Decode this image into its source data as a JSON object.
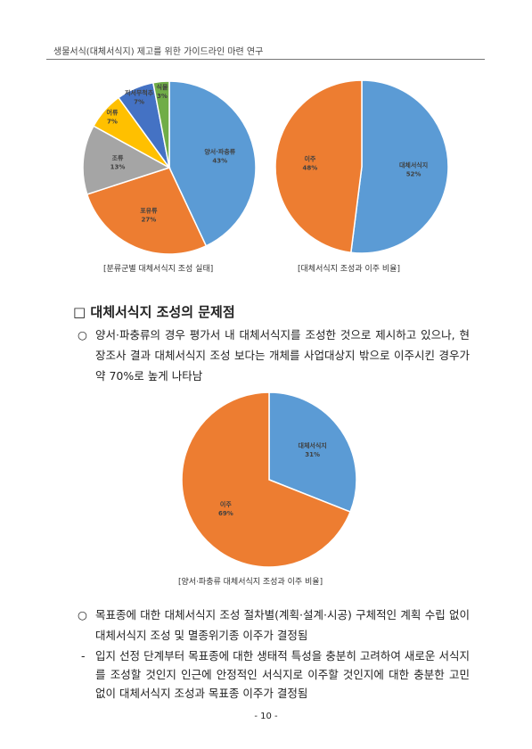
{
  "header": {
    "title": "생물서식(대체서식지) 제고를 위한 가이드라인 마련 연구"
  },
  "chart_data": [
    {
      "type": "pie",
      "caption": "[분류군별 대체서식지 조성 실태]",
      "categories": [
        "양서·파충류",
        "포유류",
        "조류",
        "어류",
        "저서무척추",
        "식물"
      ],
      "values": [
        43,
        27,
        13,
        7,
        7,
        3
      ],
      "value_labels": [
        "43%",
        "27%",
        "13%",
        "7%",
        "7%",
        "3%"
      ],
      "colors": [
        "#5b9bd5",
        "#ed7d31",
        "#a5a5a5",
        "#ffc000",
        "#4472c4",
        "#70ad47"
      ]
    },
    {
      "type": "pie",
      "caption": "[대체서식지 조성과 이주 비율]",
      "categories": [
        "대체서식지",
        "이주"
      ],
      "values": [
        52,
        48
      ],
      "value_labels": [
        "52%",
        "48%"
      ],
      "colors": [
        "#5b9bd5",
        "#ed7d31"
      ]
    },
    {
      "type": "pie",
      "caption": "[양서·파충류 대체서식지 조성과 이주 비율]",
      "categories": [
        "대체서식지",
        "이주"
      ],
      "values": [
        31,
        69
      ],
      "value_labels": [
        "31%",
        "69%"
      ],
      "colors": [
        "#5b9bd5",
        "#ed7d31"
      ]
    }
  ],
  "section": {
    "heading": "□ 대체서식지 조성의 문제점",
    "items": [
      {
        "bullet": "○",
        "text": "양서·파충류의 경우 평가서 내 대체서식지를 조성한 것으로 제시하고 있으나, 현장조사 결과 대체서식지 조성 보다는 개체를 사업대상지 밖으로 이주시킨 경우가 약 70%로 높게 나타남"
      },
      {
        "bullet": "○",
        "text": "목표종에 대한 대체서식지 조성 절차별(계획·설계·시공) 구체적인 계획 수립 없이 대체서식지 조성 및 멸종위기종 이주가 결정됨"
      },
      {
        "bullet": "-",
        "text": "입지 선정 단계부터 목표종에 대한 생태적 특성을 충분히 고려하여 새로운 서식지를 조성할 것인지 인근에 안정적인 서식지로 이주할 것인지에 대한 충분한 고민 없이 대체서식지 조성과 목표종 이주가 결정됨"
      }
    ]
  },
  "footer": {
    "page_number": "- 10 -"
  }
}
